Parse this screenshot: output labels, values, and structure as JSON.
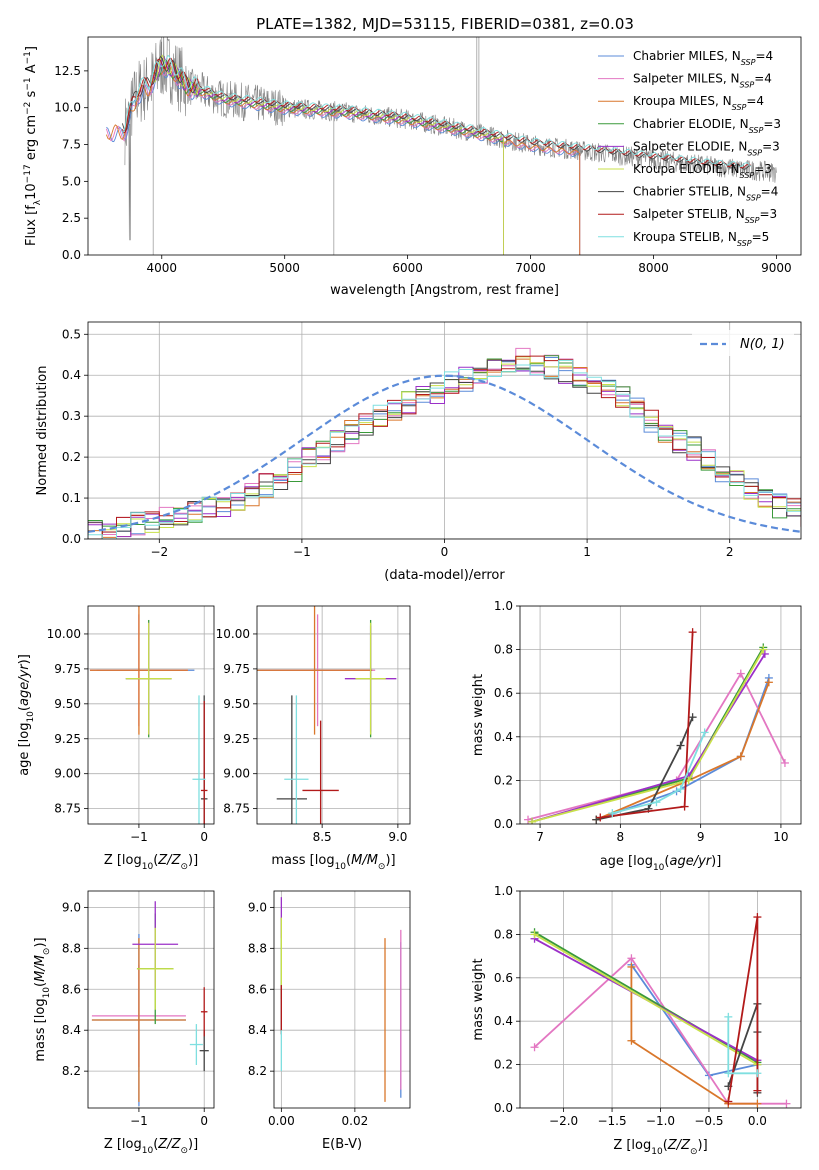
{
  "colors": {
    "chab_miles": "#5b8bd9",
    "salp_miles": "#e377c2",
    "krou_miles": "#d9772b",
    "chab_elodie": "#3a9a3a",
    "salp_elodie": "#9b30c8",
    "krou_elodie": "#c8e04a",
    "chab_stelib": "#444444",
    "salp_stelib": "#b21a1a",
    "krou_stelib": "#7fdfe0",
    "data": "#808080",
    "normal": "#5b8bd9"
  },
  "chart_data": [
    {
      "id": "spectrum",
      "type": "line",
      "title": "PLATE=1382, MJD=53115, FIBERID=0381, z=0.03",
      "xlabel": "wavelength [Angstrom, rest frame]",
      "ylabel": "Flux [f_λ 10^-17 erg cm^-2 s^-1 A^-1]",
      "xlim": [
        3400,
        9200
      ],
      "ylim": [
        0,
        14.8
      ],
      "xticks": [
        4000,
        5000,
        6000,
        7000,
        8000,
        9000
      ],
      "yticks": [
        0.0,
        2.5,
        5.0,
        7.5,
        10.0,
        12.5
      ],
      "grid": false,
      "legend": "top-right",
      "models": [
        {
          "name": "Chabrier MILES, N_SSP=4",
          "color_key": "chab_miles"
        },
        {
          "name": "Salpeter MILES, N_SSP=4",
          "color_key": "salp_miles"
        },
        {
          "name": "Kroupa MILES, N_SSP=4",
          "color_key": "krou_miles"
        },
        {
          "name": "Chabrier ELODIE, N_SSP=3",
          "color_key": "chab_elodie"
        },
        {
          "name": "Salpeter ELODIE, N_SSP=3",
          "color_key": "salp_elodie"
        },
        {
          "name": "Kroupa ELODIE, N_SSP=3",
          "color_key": "krou_elodie"
        },
        {
          "name": "Chabrier STELIB, N_SSP=4",
          "color_key": "chab_stelib"
        },
        {
          "name": "Salpeter STELIB, N_SSP=3",
          "color_key": "salp_stelib"
        },
        {
          "name": "Kroupa STELIB, N_SSP=5",
          "color_key": "krou_stelib"
        }
      ],
      "model_curve": {
        "x": [
          3700,
          3800,
          3900,
          4000,
          4100,
          4200,
          4500,
          5000,
          5500,
          6000,
          6500,
          7000,
          7500,
          8000,
          8500,
          9000
        ],
        "y": [
          8.5,
          11.0,
          11.5,
          13.0,
          12.5,
          11.5,
          10.6,
          10.0,
          9.7,
          9.2,
          8.4,
          7.5,
          7.0,
          6.5,
          6.0,
          5.6
        ]
      },
      "model_xranges": {
        "miles": [
          3550,
          7400
        ],
        "elodie": [
          3920,
          6780
        ],
        "stelib": [
          3680,
          8800
        ]
      }
    },
    {
      "id": "residuals",
      "type": "bar",
      "xlabel": "(data-model)/error",
      "ylabel": "Normed distribution",
      "xlim": [
        -2.5,
        2.5
      ],
      "ylim": [
        0,
        0.53
      ],
      "xticks": [
        -2,
        -1,
        0,
        1,
        2
      ],
      "yticks": [
        0.0,
        0.1,
        0.2,
        0.3,
        0.4,
        0.5
      ],
      "grid": true,
      "legend": "top-right",
      "normal_label": "N(0, 1)",
      "bin_width": 0.1,
      "bin_start": -2.5,
      "base_hist": [
        0.02,
        0.02,
        0.03,
        0.04,
        0.04,
        0.05,
        0.06,
        0.07,
        0.08,
        0.08,
        0.1,
        0.11,
        0.13,
        0.15,
        0.17,
        0.2,
        0.21,
        0.24,
        0.26,
        0.28,
        0.3,
        0.31,
        0.33,
        0.35,
        0.36,
        0.38,
        0.39,
        0.4,
        0.41,
        0.42,
        0.44,
        0.43,
        0.42,
        0.41,
        0.4,
        0.38,
        0.36,
        0.35,
        0.32,
        0.29,
        0.26,
        0.24,
        0.22,
        0.19,
        0.16,
        0.14,
        0.12,
        0.1,
        0.08,
        0.07,
        0.06,
        0.05,
        0.04,
        0.03,
        0.03
      ]
    },
    {
      "id": "z_age",
      "type": "scatter",
      "xlabel": "Z [log10(Z/Z☉)]",
      "ylabel": "age [log10(age/yr)]",
      "xlim": [
        -1.78,
        0.15
      ],
      "ylim": [
        8.64,
        10.2
      ],
      "xticks": [
        -1,
        0
      ],
      "yticks": [
        8.75,
        9.0,
        9.25,
        9.5,
        9.75,
        10.0
      ],
      "grid": true,
      "points": [
        {
          "c": "chab_miles",
          "x": -0.9,
          "y": 9.74,
          "xe": 0.75,
          "ye": 0.0
        },
        {
          "c": "salp_miles",
          "x": -1.0,
          "y": 9.74,
          "xe": 0.75,
          "ye": 0.4
        },
        {
          "c": "krou_miles",
          "x": -1.0,
          "y": 9.74,
          "xe": 0.75,
          "ye": 0.46
        },
        {
          "c": "chab_elodie",
          "x": -0.85,
          "y": 9.68,
          "xe": 0.35,
          "ye": 0.42
        },
        {
          "c": "salp_elodie",
          "x": -0.85,
          "y": 9.68,
          "xe": 0.35,
          "ye": 0.4
        },
        {
          "c": "krou_elodie",
          "x": -0.85,
          "y": 9.68,
          "xe": 0.35,
          "ye": 0.4
        },
        {
          "c": "chab_stelib",
          "x": 0.0,
          "y": 8.82,
          "xe": 0.05,
          "ye": 0.74
        },
        {
          "c": "salp_stelib",
          "x": 0.0,
          "y": 8.88,
          "xe": 0.05,
          "ye": 0.64
        },
        {
          "c": "krou_stelib",
          "x": -0.08,
          "y": 8.96,
          "xe": 0.1,
          "ye": 0.6
        }
      ]
    },
    {
      "id": "mass_age",
      "type": "scatter",
      "xlabel": "mass [log10(M/M☉)]",
      "ylabel": "",
      "xlim": [
        8.07,
        9.08
      ],
      "ylim": [
        8.64,
        10.2
      ],
      "xticks": [
        8.5,
        9.0
      ],
      "yticks": [
        8.75,
        9.0,
        9.25,
        9.5,
        9.75,
        10.0
      ],
      "grid": true,
      "points": [
        {
          "c": "chab_miles",
          "x": 8.45,
          "y": 9.74,
          "xe": 0.38,
          "ye": 0.0
        },
        {
          "c": "salp_miles",
          "x": 8.47,
          "y": 9.74,
          "xe": 0.38,
          "ye": 0.4
        },
        {
          "c": "krou_miles",
          "x": 8.45,
          "y": 9.74,
          "xe": 0.38,
          "ye": 0.46
        },
        {
          "c": "chab_elodie",
          "x": 8.82,
          "y": 9.68,
          "xe": 0.1,
          "ye": 0.42
        },
        {
          "c": "salp_elodie",
          "x": 8.82,
          "y": 9.68,
          "xe": 0.17,
          "ye": 0.38
        },
        {
          "c": "krou_elodie",
          "x": 8.82,
          "y": 9.68,
          "xe": 0.1,
          "ye": 0.4
        },
        {
          "c": "chab_stelib",
          "x": 8.3,
          "y": 8.82,
          "xe": 0.1,
          "ye": 0.74
        },
        {
          "c": "salp_stelib",
          "x": 8.49,
          "y": 8.88,
          "xe": 0.12,
          "ye": 0.5
        },
        {
          "c": "krou_stelib",
          "x": 8.33,
          "y": 8.96,
          "xe": 0.08,
          "ye": 0.6
        }
      ]
    },
    {
      "id": "age_weight",
      "type": "line",
      "xlabel": "age [log10(age/yr)]",
      "ylabel": "mass weight",
      "xlim": [
        6.75,
        10.25
      ],
      "ylim": [
        0,
        1
      ],
      "xticks": [
        7,
        8,
        9,
        10
      ],
      "yticks": [
        0.0,
        0.2,
        0.4,
        0.6,
        0.8,
        1.0
      ],
      "grid": true,
      "series": [
        {
          "c": "chab_miles",
          "x": [
            7.7,
            8.7,
            9.5,
            9.85
          ],
          "y": [
            0.02,
            0.15,
            0.31,
            0.67
          ]
        },
        {
          "c": "salp_miles",
          "x": [
            6.85,
            8.7,
            9.5,
            10.05
          ],
          "y": [
            0.02,
            0.2,
            0.69,
            0.28
          ]
        },
        {
          "c": "krou_miles",
          "x": [
            7.7,
            8.85,
            9.5,
            9.85
          ],
          "y": [
            0.02,
            0.2,
            0.31,
            0.65
          ]
        },
        {
          "c": "chab_elodie",
          "x": [
            6.9,
            8.85,
            9.78
          ],
          "y": [
            0.01,
            0.21,
            0.81
          ]
        },
        {
          "c": "salp_elodie",
          "x": [
            6.9,
            8.85,
            9.8
          ],
          "y": [
            0.01,
            0.22,
            0.78
          ]
        },
        {
          "c": "krou_elodie",
          "x": [
            6.9,
            8.85,
            9.78
          ],
          "y": [
            0.01,
            0.2,
            0.8
          ]
        },
        {
          "c": "chab_stelib",
          "x": [
            7.7,
            8.35,
            8.75,
            8.9
          ],
          "y": [
            0.02,
            0.07,
            0.36,
            0.49
          ]
        },
        {
          "c": "salp_stelib",
          "x": [
            7.75,
            8.8,
            8.9
          ],
          "y": [
            0.03,
            0.08,
            0.88
          ]
        },
        {
          "c": "krou_stelib",
          "x": [
            7.9,
            8.45,
            8.75,
            9.05
          ],
          "y": [
            0.05,
            0.1,
            0.16,
            0.42
          ]
        }
      ]
    },
    {
      "id": "z_mass",
      "type": "scatter",
      "xlabel": "Z [log10(Z/Z☉)]",
      "ylabel": "mass [log10(M/M☉)]",
      "xlim": [
        -1.78,
        0.15
      ],
      "ylim": [
        8.02,
        9.08
      ],
      "xticks": [
        -1,
        0
      ],
      "yticks": [
        8.2,
        8.4,
        8.6,
        8.8,
        9.0
      ],
      "grid": true,
      "points": [
        {
          "c": "chab_miles",
          "x": -1.0,
          "y": 8.45,
          "xe": 0.72,
          "ye": 0.42
        },
        {
          "c": "salp_miles",
          "x": -1.0,
          "y": 8.47,
          "xe": 0.72,
          "ye": 0.25
        },
        {
          "c": "krou_miles",
          "x": -1.0,
          "y": 8.45,
          "xe": 0.72,
          "ye": 0.4
        },
        {
          "c": "chab_elodie",
          "x": -0.75,
          "y": 8.7,
          "xe": 0.28,
          "ye": 0.27
        },
        {
          "c": "salp_elodie",
          "x": -0.75,
          "y": 8.82,
          "xe": 0.35,
          "ye": 0.21
        },
        {
          "c": "krou_elodie",
          "x": -0.75,
          "y": 8.7,
          "xe": 0.28,
          "ye": 0.2
        },
        {
          "c": "chab_stelib",
          "x": 0.0,
          "y": 8.3,
          "xe": 0.07,
          "ye": 0.1
        },
        {
          "c": "salp_stelib",
          "x": 0.0,
          "y": 8.49,
          "xe": 0.05,
          "ye": 0.12
        },
        {
          "c": "krou_stelib",
          "x": -0.12,
          "y": 8.33,
          "xe": 0.1,
          "ye": 0.1
        }
      ]
    },
    {
      "id": "ebv_mass",
      "type": "scatter",
      "xlabel": "E(B-V)",
      "ylabel": "",
      "xlim": [
        -0.002,
        0.035
      ],
      "ylim": [
        8.02,
        9.08
      ],
      "xticks": [
        0.0,
        0.02
      ],
      "yticks": [
        8.2,
        8.4,
        8.6,
        8.8,
        9.0
      ],
      "grid": true,
      "points": [
        {
          "c": "chab_miles",
          "x": 0.0325,
          "y": 8.45,
          "xe": 0.0,
          "ye": 0.38
        },
        {
          "c": "salp_miles",
          "x": 0.0325,
          "y": 8.5,
          "xe": 0.0,
          "ye": 0.39
        },
        {
          "c": "krou_miles",
          "x": 0.0282,
          "y": 8.45,
          "xe": 0.0,
          "ye": 0.4
        },
        {
          "c": "chab_elodie",
          "x": 0.0,
          "y": 8.75,
          "xe": 0.0,
          "ye": 0.2
        },
        {
          "c": "salp_elodie",
          "x": 0.0,
          "y": 8.95,
          "xe": 0.0,
          "ye": 0.1
        },
        {
          "c": "krou_elodie",
          "x": 0.0,
          "y": 8.75,
          "xe": 0.0,
          "ye": 0.2
        },
        {
          "c": "chab_stelib",
          "x": 0.0,
          "y": 8.5,
          "xe": 0.0,
          "ye": 0.12
        },
        {
          "c": "salp_stelib",
          "x": 0.0,
          "y": 8.5,
          "xe": 0.0,
          "ye": 0.12
        },
        {
          "c": "krou_stelib",
          "x": 0.0,
          "y": 8.3,
          "xe": 0.0,
          "ye": 0.1
        }
      ]
    },
    {
      "id": "z_weight",
      "type": "line",
      "xlabel": "Z [log10(Z/Z☉)]",
      "ylabel": "mass weight",
      "xlim": [
        -2.45,
        0.45
      ],
      "ylim": [
        0,
        1
      ],
      "xticks": [
        -2.0,
        -1.5,
        -1.0,
        -0.5,
        0.0
      ],
      "yticks": [
        0.0,
        0.2,
        0.4,
        0.6,
        0.8,
        1.0
      ],
      "grid": true,
      "series": [
        {
          "c": "chab_miles",
          "x": [
            -1.3,
            -0.5,
            0.0
          ],
          "y": [
            0.66,
            0.15,
            0.2
          ]
        },
        {
          "c": "salp_miles",
          "x": [
            -2.3,
            -1.3,
            -0.3,
            0.3
          ],
          "y": [
            0.28,
            0.69,
            0.02,
            0.02
          ]
        },
        {
          "c": "krou_miles",
          "x": [
            -1.3,
            -1.3,
            -0.3,
            0.0
          ],
          "y": [
            0.65,
            0.31,
            0.02,
            0.02
          ]
        },
        {
          "c": "chab_elodie",
          "x": [
            -2.3,
            0.0
          ],
          "y": [
            0.81,
            0.21
          ]
        },
        {
          "c": "salp_elodie",
          "x": [
            -2.3,
            0.0
          ],
          "y": [
            0.78,
            0.22
          ]
        },
        {
          "c": "krou_elodie",
          "x": [
            -2.3,
            0.0
          ],
          "y": [
            0.8,
            0.2
          ]
        },
        {
          "c": "chab_stelib",
          "x": [
            -0.3,
            0.0,
            0.0,
            0.0
          ],
          "y": [
            0.1,
            0.48,
            0.35,
            0.07
          ]
        },
        {
          "c": "salp_stelib",
          "x": [
            -0.3,
            0.0,
            0.0
          ],
          "y": [
            0.03,
            0.88,
            0.08
          ]
        },
        {
          "c": "krou_stelib",
          "x": [
            -0.3,
            -0.3,
            0.0
          ],
          "y": [
            0.42,
            0.16,
            0.16
          ]
        }
      ]
    }
  ]
}
